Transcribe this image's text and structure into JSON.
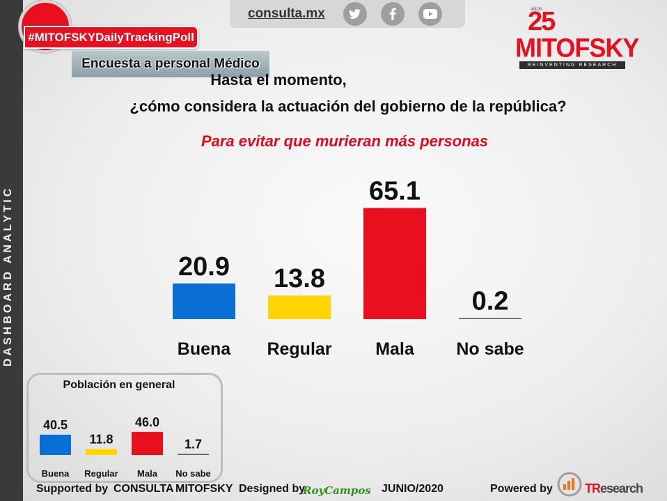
{
  "header": {
    "hashtag": "#MITOFSKYDailyTrackingPoll",
    "survey_label": "Encuesta a personal Médico",
    "site": "consulta.mx",
    "social_icons": [
      "twitter-icon",
      "facebook-icon",
      "youtube-icon"
    ]
  },
  "logo": {
    "anniversary": "25",
    "anos": "AÑOS",
    "name": "MITOFSKY",
    "tagline": "REINVENTING RESEARCH"
  },
  "sidebar": {
    "text": "DASHBOARD ANALYTIC"
  },
  "question": {
    "line1": "Hasta el momento,",
    "line2": "¿cómo considera la actuación del gobierno de la república?"
  },
  "subtitle": "Para evitar que murieran más personas",
  "colors": {
    "buena": "#0a6fd4",
    "regular": "#ffd400",
    "mala": "#e8101f",
    "no_sabe": "#555555",
    "accent": "#e00a1a"
  },
  "chart_data": [
    {
      "type": "bar",
      "categories": [
        "Buena",
        "Regular",
        "Mala",
        "No sabe"
      ],
      "values": [
        20.9,
        13.8,
        65.1,
        0.2
      ],
      "data_labels": [
        "20.9",
        "13.8",
        "65.1",
        "0.2"
      ],
      "title": "Para evitar que murieran más personas",
      "ylim": [
        0,
        70
      ],
      "grid": false
    },
    {
      "type": "bar",
      "title": "Población en general",
      "categories": [
        "Buena",
        "Regular",
        "Mala",
        "No sabe"
      ],
      "values": [
        40.5,
        11.8,
        46.0,
        1.7
      ],
      "data_labels": [
        "40.5",
        "11.8",
        "46.0",
        "1.7"
      ],
      "ylim": [
        0,
        50
      ],
      "grid": false
    }
  ],
  "footer": {
    "supported_by": "Supported by",
    "consulta": "CONSULTA",
    "mitofsky": "MITOFSKY",
    "designed_by": "Designed by",
    "designer": "RoyCampos",
    "date": "JUNIO/2020",
    "powered_by": "Powered by",
    "tr_prefix": "TR",
    "tr_suffix": "esearch"
  }
}
